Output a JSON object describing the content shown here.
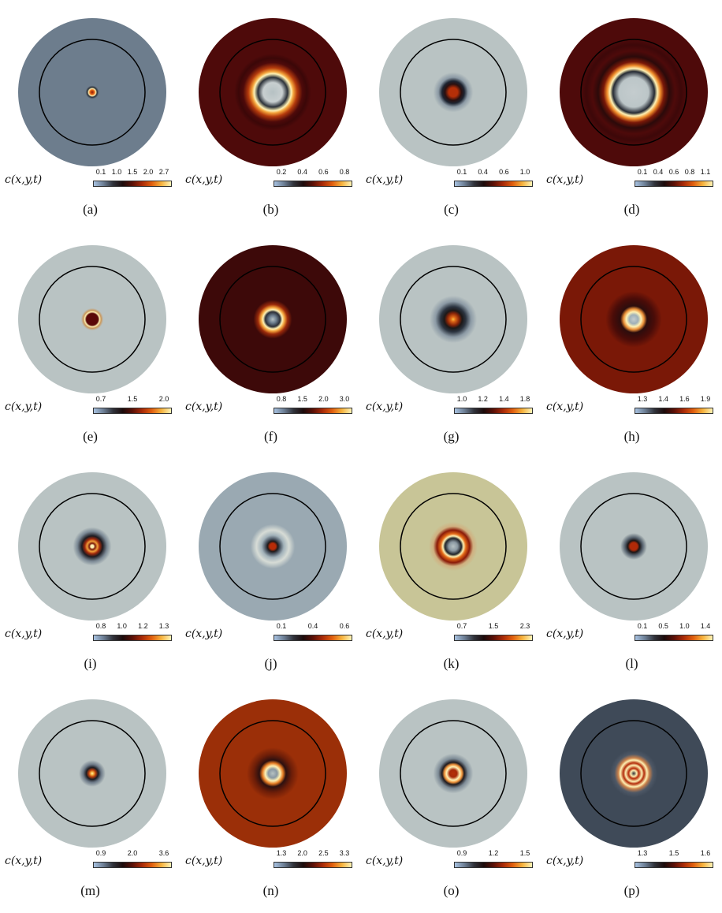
{
  "variable_label": "c(x,y,t)",
  "colormap": [
    "#a7c1e0",
    "#6d7f95",
    "#30323a",
    "#1c0b0b",
    "#5a1007",
    "#a82a08",
    "#e05e0e",
    "#f6b23d",
    "#fff3b5"
  ],
  "circle_color": "#000000",
  "panels": [
    {
      "caption": "(a)",
      "ticks": [
        "0.1",
        "1.0",
        "1.5",
        "2.0",
        "2.7"
      ],
      "background": "#6d7d8d",
      "rings": [
        [
          0,
          "#8b1a08"
        ],
        [
          0.03,
          "#e86412"
        ],
        [
          0.05,
          "#fff0b0"
        ],
        [
          0.065,
          "#2a2e36"
        ],
        [
          0.09,
          "#6d7d8d"
        ]
      ]
    },
    {
      "caption": "(b)",
      "ticks": [
        "0.2",
        "0.4",
        "0.6",
        "0.8"
      ],
      "background": "#4e0a0a",
      "rings": [
        [
          0,
          "#b6c1c3"
        ],
        [
          0.13,
          "#c8cfd0"
        ],
        [
          0.2,
          "#2c323a"
        ],
        [
          0.25,
          "#fff2b5"
        ],
        [
          0.28,
          "#f3a23a"
        ],
        [
          0.33,
          "#b33a0c"
        ],
        [
          0.4,
          "#4e0a0a"
        ],
        [
          0.46,
          "#3b0708"
        ],
        [
          0.52,
          "#4e0a0a"
        ]
      ]
    },
    {
      "caption": "(c)",
      "ticks": [
        "0.1",
        "0.4",
        "0.6",
        "1.0"
      ],
      "background": "#b9c3c3",
      "rings": [
        [
          0,
          "#b52f08"
        ],
        [
          0.06,
          "#b52f08"
        ],
        [
          0.11,
          "#2a1010"
        ],
        [
          0.15,
          "#1c2330"
        ],
        [
          0.2,
          "#8c9aa5"
        ],
        [
          0.27,
          "#b9c3c3"
        ]
      ]
    },
    {
      "caption": "(d)",
      "ticks": [
        "0.1",
        "0.4",
        "0.6",
        "0.8",
        "1.1"
      ],
      "background": "#4e0a0a",
      "rings": [
        [
          0,
          "#c4ccce"
        ],
        [
          0.2,
          "#bcc6c8"
        ],
        [
          0.28,
          "#252a33"
        ],
        [
          0.32,
          "#fff2b5"
        ],
        [
          0.36,
          "#ee8b2a"
        ],
        [
          0.41,
          "#7a1808"
        ],
        [
          0.48,
          "#2b0a0a"
        ],
        [
          0.56,
          "#4e0a0a"
        ],
        [
          0.64,
          "#3d0809"
        ],
        [
          0.72,
          "#4e0a0a"
        ]
      ]
    },
    {
      "caption": "(e)",
      "ticks": [
        "0.7",
        "1.5",
        "2.0"
      ],
      "background": "#b9c3c3",
      "rings": [
        [
          0,
          "#5a0808"
        ],
        [
          0.08,
          "#5a0808"
        ],
        [
          0.1,
          "#fff2b5"
        ],
        [
          0.12,
          "#c9965a"
        ],
        [
          0.15,
          "#b9c3c3"
        ]
      ]
    },
    {
      "caption": "(f)",
      "ticks": [
        "0.8",
        "1.5",
        "2.0",
        "3.0"
      ],
      "background": "#3d0909",
      "rings": [
        [
          0,
          "#b6c1c3"
        ],
        [
          0.05,
          "#6d7f90"
        ],
        [
          0.1,
          "#2b2e36"
        ],
        [
          0.13,
          "#fff2b5"
        ],
        [
          0.16,
          "#f3a23a"
        ],
        [
          0.2,
          "#9a2a0a"
        ],
        [
          0.26,
          "#3d0909"
        ]
      ]
    },
    {
      "caption": "(g)",
      "ticks": [
        "1.0",
        "1.2",
        "1.4",
        "1.8"
      ],
      "background": "#b9c3c3",
      "rings": [
        [
          0,
          "#f6c040"
        ],
        [
          0.03,
          "#e06a18"
        ],
        [
          0.08,
          "#8a2508"
        ],
        [
          0.12,
          "#1c1818"
        ],
        [
          0.17,
          "#2b3440"
        ],
        [
          0.24,
          "#8c9aa5"
        ],
        [
          0.32,
          "#b9c3c3"
        ]
      ]
    },
    {
      "caption": "(h)",
      "ticks": [
        "1.3",
        "1.4",
        "1.6",
        "1.9"
      ],
      "background": "#7a1807",
      "rings": [
        [
          0,
          "#c4ccce"
        ],
        [
          0.06,
          "#9fb0b8"
        ],
        [
          0.1,
          "#fff2b5"
        ],
        [
          0.14,
          "#e88d36"
        ],
        [
          0.18,
          "#2c0d0d"
        ],
        [
          0.28,
          "#4a0c08"
        ],
        [
          0.38,
          "#7a1807"
        ]
      ]
    },
    {
      "caption": "(i)",
      "ticks": [
        "0.8",
        "1.0",
        "1.2",
        "1.3"
      ],
      "background": "#b9c3c3",
      "rings": [
        [
          0,
          "#fff2b5"
        ],
        [
          0.02,
          "#fff2b5"
        ],
        [
          0.04,
          "#7a1a0a"
        ],
        [
          0.07,
          "#f2a03a"
        ],
        [
          0.1,
          "#a32a0c"
        ],
        [
          0.14,
          "#1c1a20"
        ],
        [
          0.2,
          "#7a8894"
        ],
        [
          0.26,
          "#b9c3c3"
        ]
      ]
    },
    {
      "caption": "(j)",
      "ticks": [
        "0.1",
        "0.4",
        "0.6"
      ],
      "background": "#9aa9b2",
      "rings": [
        [
          0,
          "#b82c08"
        ],
        [
          0.04,
          "#b82c08"
        ],
        [
          0.07,
          "#1e1a1a"
        ],
        [
          0.1,
          "#4a5562"
        ],
        [
          0.15,
          "#a2b2ba"
        ],
        [
          0.22,
          "#d7dcd6"
        ],
        [
          0.3,
          "#9aa9b2"
        ]
      ]
    },
    {
      "caption": "(k)",
      "ticks": [
        "0.7",
        "1.5",
        "2.3"
      ],
      "background": "#c8c597",
      "rings": [
        [
          0,
          "#b6c1c3"
        ],
        [
          0.06,
          "#8a98a2"
        ],
        [
          0.11,
          "#1e2228"
        ],
        [
          0.14,
          "#fff2b5"
        ],
        [
          0.17,
          "#e46b18"
        ],
        [
          0.22,
          "#8a1a08"
        ],
        [
          0.27,
          "#d0b080"
        ],
        [
          0.33,
          "#c8c597"
        ]
      ]
    },
    {
      "caption": "(l)",
      "ticks": [
        "0.1",
        "0.5",
        "1.0",
        "1.4"
      ],
      "background": "#b9c3c3",
      "rings": [
        [
          0,
          "#b22a08"
        ],
        [
          0.05,
          "#b22a08"
        ],
        [
          0.08,
          "#1c1616"
        ],
        [
          0.12,
          "#56626e"
        ],
        [
          0.18,
          "#b9c3c3"
        ]
      ]
    },
    {
      "caption": "(m)",
      "ticks": [
        "0.9",
        "2.0",
        "3.6"
      ],
      "background": "#b9c3c3",
      "rings": [
        [
          0,
          "#fff2b5"
        ],
        [
          0.02,
          "#f6b23d"
        ],
        [
          0.045,
          "#c0420e"
        ],
        [
          0.08,
          "#1c1c22"
        ],
        [
          0.12,
          "#6b7886"
        ],
        [
          0.18,
          "#b9c3c3"
        ]
      ]
    },
    {
      "caption": "(n)",
      "ticks": [
        "1.3",
        "2.0",
        "2.5",
        "3.3"
      ],
      "background": "#9b2f08",
      "rings": [
        [
          0,
          "#b6c1c3"
        ],
        [
          0.06,
          "#8a98a2"
        ],
        [
          0.1,
          "#fff2b5"
        ],
        [
          0.14,
          "#e47a22"
        ],
        [
          0.18,
          "#2c1010"
        ],
        [
          0.26,
          "#6e1e08"
        ],
        [
          0.35,
          "#9b2f08"
        ]
      ]
    },
    {
      "caption": "(o)",
      "ticks": [
        "0.9",
        "1.2",
        "1.5"
      ],
      "background": "#b9c3c3",
      "rings": [
        [
          0,
          "#b52f08"
        ],
        [
          0.05,
          "#a62808"
        ],
        [
          0.09,
          "#fff2b5"
        ],
        [
          0.12,
          "#f0923a"
        ],
        [
          0.15,
          "#1e1a1e"
        ],
        [
          0.2,
          "#7d8b96"
        ],
        [
          0.27,
          "#b9c3c3"
        ]
      ]
    },
    {
      "caption": "(p)",
      "ticks": [
        "1.3",
        "1.5",
        "1.6"
      ],
      "background": "#3f4a58",
      "rings": [
        [
          0,
          "#2a2a30"
        ],
        [
          0.04,
          "#fff2b5"
        ],
        [
          0.07,
          "#b62c08"
        ],
        [
          0.11,
          "#fff2b5"
        ],
        [
          0.14,
          "#b22a08"
        ],
        [
          0.18,
          "#fff2b5"
        ],
        [
          0.21,
          "#c9804a"
        ],
        [
          0.26,
          "#4e5866"
        ],
        [
          0.32,
          "#3f4a58"
        ]
      ]
    }
  ]
}
